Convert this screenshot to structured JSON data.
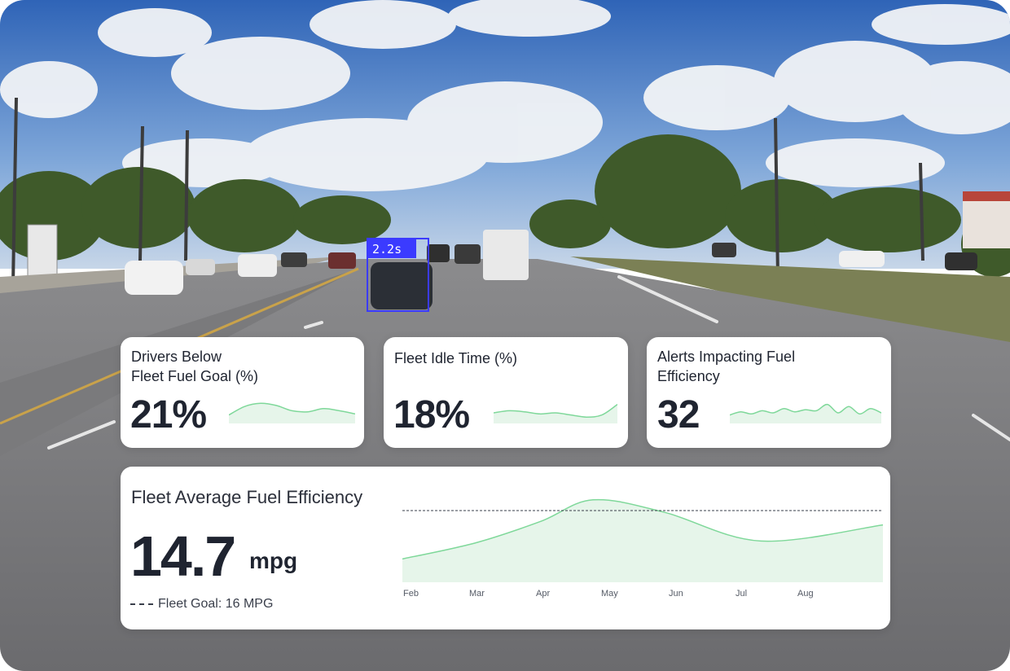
{
  "video_overlay": {
    "detection_label": "2.2s",
    "box_color": "#3b3bff"
  },
  "cards": [
    {
      "title_line1": "Drivers Below",
      "title_line2": "Fleet Fuel Goal (%)",
      "value": "21%"
    },
    {
      "title_line1": "Fleet Idle Time (%)",
      "title_line2": "",
      "value": "18%"
    },
    {
      "title_line1": "Alerts Impacting Fuel",
      "title_line2": "Efficiency",
      "value": "32"
    }
  ],
  "main_card": {
    "title": "Fleet Average Fuel Efficiency",
    "value": "14.7",
    "unit": "mpg",
    "goal_label": "Fleet Goal: 16 MPG"
  },
  "chart_data": {
    "type": "area",
    "categories": [
      "Feb",
      "Mar",
      "Apr",
      "May",
      "Jun",
      "Jul",
      "Aug"
    ],
    "series": [
      {
        "values": [
          13.3,
          14.2,
          15.4,
          16.6,
          15.9,
          14.3,
          15.2
        ]
      }
    ],
    "reference_line": 16,
    "ylim": [
      12,
      17
    ],
    "grid": false,
    "line_color": "#7fd89a",
    "fill_color": "#e6f5ea"
  },
  "sparklines": [
    {
      "values": [
        0.4,
        0.8,
        0.95,
        0.85,
        0.6,
        0.55,
        0.7,
        0.6,
        0.45
      ]
    },
    {
      "values": [
        0.5,
        0.6,
        0.55,
        0.45,
        0.5,
        0.4,
        0.3,
        0.4,
        0.9
      ]
    },
    {
      "values": [
        0.4,
        0.55,
        0.45,
        0.6,
        0.5,
        0.7,
        0.55,
        0.65,
        0.6,
        0.9,
        0.5,
        0.8,
        0.45,
        0.7,
        0.5
      ]
    }
  ],
  "colors": {
    "accent": "#7fd89a",
    "text": "#1f2430"
  }
}
